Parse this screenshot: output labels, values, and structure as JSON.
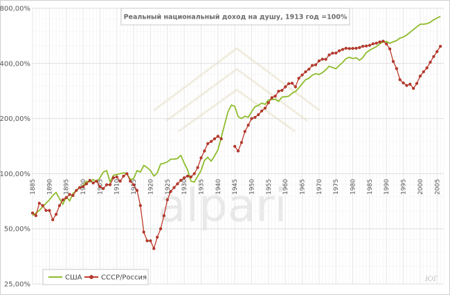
{
  "chart_data": {
    "type": "line",
    "title": "Реальный национальный доход на душу, 1913 год =100%",
    "xlabel": "",
    "ylabel": "",
    "y_scale": "log",
    "ylim": [
      25,
      800
    ],
    "xlim": [
      1885,
      2007
    ],
    "y_ticks": [
      25,
      50,
      100,
      200,
      400,
      800
    ],
    "y_tick_labels": [
      "25,00%",
      "50,00%",
      "100,00%",
      "200,00%",
      "400,00%",
      "800,00%"
    ],
    "x_ticks": [
      1885,
      1890,
      1895,
      1900,
      1905,
      1910,
      1915,
      1920,
      1925,
      1930,
      1935,
      1940,
      1945,
      1950,
      1955,
      1960,
      1965,
      1970,
      1975,
      1980,
      1985,
      1990,
      1995,
      2000,
      2005
    ],
    "grid": true,
    "legend_position": "bottom-left",
    "series": [
      {
        "name": "США",
        "color": "#8dbb2a",
        "marker": "none",
        "points": [
          [
            1885,
            59
          ],
          [
            1887,
            63
          ],
          [
            1888,
            66
          ],
          [
            1889,
            69
          ],
          [
            1890,
            72
          ],
          [
            1891,
            76
          ],
          [
            1892,
            79
          ],
          [
            1893,
            73
          ],
          [
            1894,
            68
          ],
          [
            1895,
            75
          ],
          [
            1896,
            71
          ],
          [
            1897,
            78
          ],
          [
            1898,
            81
          ],
          [
            1899,
            84
          ],
          [
            1900,
            86
          ],
          [
            1901,
            91
          ],
          [
            1902,
            90
          ],
          [
            1903,
            93
          ],
          [
            1904,
            90
          ],
          [
            1905,
            95
          ],
          [
            1906,
            102
          ],
          [
            1907,
            104
          ],
          [
            1908,
            90
          ],
          [
            1909,
            98
          ],
          [
            1910,
            99
          ],
          [
            1911,
            100
          ],
          [
            1912,
            101
          ],
          [
            1913,
            100
          ],
          [
            1914,
            93
          ],
          [
            1915,
            94
          ],
          [
            1916,
            104
          ],
          [
            1917,
            102
          ],
          [
            1918,
            111
          ],
          [
            1919,
            108
          ],
          [
            1920,
            104
          ],
          [
            1921,
            97
          ],
          [
            1922,
            101
          ],
          [
            1923,
            113
          ],
          [
            1924,
            114
          ],
          [
            1925,
            116
          ],
          [
            1926,
            120
          ],
          [
            1927,
            120
          ],
          [
            1928,
            121
          ],
          [
            1929,
            126
          ],
          [
            1930,
            114
          ],
          [
            1931,
            105
          ],
          [
            1932,
            91
          ],
          [
            1933,
            90
          ],
          [
            1934,
            97
          ],
          [
            1935,
            104
          ],
          [
            1936,
            118
          ],
          [
            1937,
            123
          ],
          [
            1938,
            117
          ],
          [
            1939,
            125
          ],
          [
            1940,
            135
          ],
          [
            1941,
            158
          ],
          [
            1942,
            186
          ],
          [
            1943,
            218
          ],
          [
            1944,
            237
          ],
          [
            1945,
            233
          ],
          [
            1946,
            205
          ],
          [
            1947,
            200
          ],
          [
            1948,
            206
          ],
          [
            1949,
            203
          ],
          [
            1950,
            218
          ],
          [
            1951,
            232
          ],
          [
            1952,
            236
          ],
          [
            1953,
            243
          ],
          [
            1954,
            239
          ],
          [
            1955,
            253
          ],
          [
            1956,
            254
          ],
          [
            1957,
            255
          ],
          [
            1958,
            248
          ],
          [
            1959,
            262
          ],
          [
            1960,
            263
          ],
          [
            1961,
            265
          ],
          [
            1962,
            275
          ],
          [
            1963,
            281
          ],
          [
            1964,
            294
          ],
          [
            1965,
            310
          ],
          [
            1966,
            326
          ],
          [
            1967,
            332
          ],
          [
            1968,
            345
          ],
          [
            1969,
            352
          ],
          [
            1970,
            348
          ],
          [
            1971,
            356
          ],
          [
            1972,
            369
          ],
          [
            1973,
            386
          ],
          [
            1974,
            380
          ],
          [
            1975,
            374
          ],
          [
            1976,
            390
          ],
          [
            1977,
            405
          ],
          [
            1978,
            425
          ],
          [
            1979,
            432
          ],
          [
            1980,
            425
          ],
          [
            1981,
            430
          ],
          [
            1982,
            416
          ],
          [
            1983,
            431
          ],
          [
            1984,
            458
          ],
          [
            1985,
            472
          ],
          [
            1986,
            483
          ],
          [
            1987,
            494
          ],
          [
            1988,
            512
          ],
          [
            1989,
            525
          ],
          [
            1990,
            527
          ],
          [
            1991,
            515
          ],
          [
            1992,
            525
          ],
          [
            1993,
            533
          ],
          [
            1994,
            550
          ],
          [
            1995,
            557
          ],
          [
            1996,
            572
          ],
          [
            1997,
            592
          ],
          [
            1998,
            612
          ],
          [
            1999,
            633
          ],
          [
            2000,
            655
          ],
          [
            2001,
            655
          ],
          [
            2002,
            659
          ],
          [
            2003,
            671
          ],
          [
            2004,
            692
          ],
          [
            2005,
            708
          ],
          [
            2006,
            722
          ]
        ]
      },
      {
        "name": "СССР/Россия",
        "color": "#c0392b",
        "marker": "circle",
        "points": [
          [
            1885,
            61
          ],
          [
            1886,
            59
          ],
          [
            1887,
            69
          ],
          [
            1888,
            67
          ],
          [
            1889,
            63
          ],
          [
            1890,
            63
          ],
          [
            1891,
            56
          ],
          [
            1892,
            60
          ],
          [
            1893,
            67
          ],
          [
            1894,
            72
          ],
          [
            1895,
            74
          ],
          [
            1896,
            77
          ],
          [
            1897,
            76
          ],
          [
            1898,
            81
          ],
          [
            1899,
            84
          ],
          [
            1900,
            85
          ],
          [
            1901,
            88
          ],
          [
            1902,
            92
          ],
          [
            1903,
            89
          ],
          [
            1904,
            91
          ],
          [
            1905,
            85
          ],
          [
            1906,
            83
          ],
          [
            1907,
            87
          ],
          [
            1908,
            87
          ],
          [
            1909,
            95
          ],
          [
            1910,
            96
          ],
          [
            1911,
            91
          ],
          [
            1912,
            97
          ],
          [
            1913,
            100
          ],
          [
            1914,
            91
          ],
          [
            1915,
            87
          ],
          [
            1916,
            81
          ],
          [
            1917,
            67
          ],
          [
            1918,
            48
          ],
          [
            1919,
            43
          ],
          [
            1920,
            43
          ],
          [
            1921,
            39
          ],
          [
            1922,
            45
          ],
          [
            1923,
            50
          ],
          [
            1924,
            59
          ],
          [
            1925,
            72
          ],
          [
            1926,
            80
          ],
          [
            1927,
            84
          ],
          [
            1928,
            88
          ],
          [
            1929,
            92
          ],
          [
            1930,
            95
          ],
          [
            1931,
            97
          ],
          [
            1932,
            96
          ],
          [
            1933,
            100
          ],
          [
            1934,
            108
          ],
          [
            1935,
            122
          ],
          [
            1936,
            133
          ],
          [
            1937,
            146
          ],
          [
            1938,
            150
          ],
          [
            1939,
            155
          ],
          [
            1940,
            160
          ],
          [
            1941,
            155
          ],
          [
            1942,
            null
          ],
          [
            1943,
            null
          ],
          [
            1944,
            null
          ],
          [
            1945,
            141
          ],
          [
            1946,
            133
          ],
          [
            1947,
            148
          ],
          [
            1948,
            170
          ],
          [
            1949,
            184
          ],
          [
            1950,
            200
          ],
          [
            1951,
            203
          ],
          [
            1952,
            210
          ],
          [
            1953,
            220
          ],
          [
            1954,
            228
          ],
          [
            1955,
            244
          ],
          [
            1956,
            260
          ],
          [
            1957,
            265
          ],
          [
            1958,
            282
          ],
          [
            1959,
            285
          ],
          [
            1960,
            298
          ],
          [
            1961,
            310
          ],
          [
            1962,
            312
          ],
          [
            1963,
            298
          ],
          [
            1964,
            332
          ],
          [
            1965,
            346
          ],
          [
            1966,
            360
          ],
          [
            1967,
            372
          ],
          [
            1968,
            390
          ],
          [
            1969,
            393
          ],
          [
            1970,
            413
          ],
          [
            1971,
            422
          ],
          [
            1972,
            421
          ],
          [
            1973,
            445
          ],
          [
            1974,
            455
          ],
          [
            1975,
            456
          ],
          [
            1976,
            469
          ],
          [
            1977,
            477
          ],
          [
            1978,
            484
          ],
          [
            1979,
            482
          ],
          [
            1980,
            483
          ],
          [
            1981,
            484
          ],
          [
            1982,
            488
          ],
          [
            1983,
            496
          ],
          [
            1984,
            498
          ],
          [
            1985,
            502
          ],
          [
            1986,
            512
          ],
          [
            1987,
            516
          ],
          [
            1988,
            524
          ],
          [
            1989,
            529
          ],
          [
            1990,
            511
          ],
          [
            1991,
            480
          ],
          [
            1992,
            410
          ],
          [
            1993,
            375
          ],
          [
            1994,
            326
          ],
          [
            1995,
            313
          ],
          [
            1996,
            303
          ],
          [
            1997,
            308
          ],
          [
            1998,
            292
          ],
          [
            1999,
            311
          ],
          [
            2000,
            341
          ],
          [
            2001,
            360
          ],
          [
            2002,
            378
          ],
          [
            2003,
            406
          ],
          [
            2004,
            436
          ],
          [
            2005,
            464
          ],
          [
            2006,
            496
          ]
        ]
      }
    ]
  },
  "legend": {
    "items": [
      {
        "name": "США",
        "color": "#8dbb2a",
        "marker": "none"
      },
      {
        "name": "СССР/Россия",
        "color": "#c0392b",
        "marker": "circle"
      }
    ]
  },
  "watermark": {
    "text": "alpari"
  },
  "signature": {
    "text": "ЮГ"
  }
}
